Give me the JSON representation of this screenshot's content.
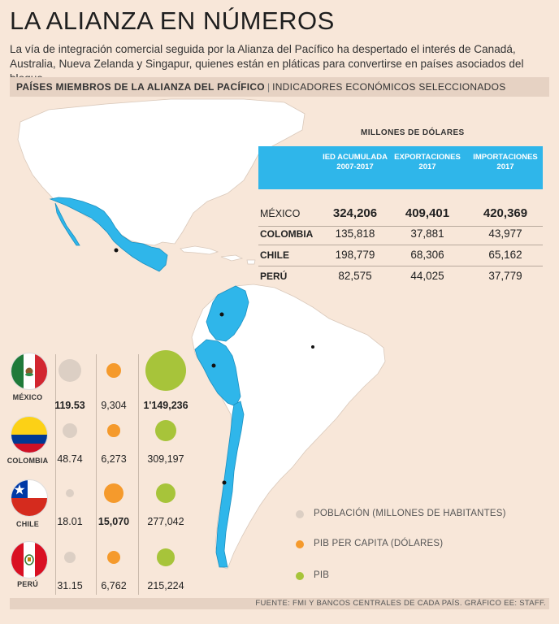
{
  "header": {
    "title": "LA ALIANZA EN NÚMEROS",
    "subtitle": "La vía de integración comercial seguida por la Alianza del Pacífico ha despertado el interés de Canadá, Australia, Nueva Zelanda y Singapur, quienes están en pláticas para convertirse en países asociados del bloque.",
    "section_strong": "PAÍSES MIEMBROS DE LA ALIANZA DEL PACÍFICO",
    "section_sep": "|",
    "section_light": "INDICADORES ECONÓMICOS SELECCIONADOS"
  },
  "colors": {
    "background": "#f8e7d9",
    "band": "#e6d2c3",
    "member": "#2fb6ea",
    "land": "#ffffff",
    "poblacion": "#dccfc4",
    "pib_per_capita": "#f59a2c",
    "pib": "#a7c43a"
  },
  "table": {
    "title": "MILLONES DE DÓLARES",
    "headers": [
      "IED ACUMULADA 2007-2017",
      "EXPORTACIONES 2017",
      "IMPORTACIONES 2017"
    ],
    "rows": [
      {
        "country": "MÉXICO",
        "ied": "324,206",
        "exp": "409,401",
        "imp": "420,369"
      },
      {
        "country": "COLOMBIA",
        "ied": "135,818",
        "exp": "37,881",
        "imp": "43,977"
      },
      {
        "country": "CHILE",
        "ied": "198,779",
        "exp": "68,306",
        "imp": "65,162"
      },
      {
        "country": "PERÚ",
        "ied": "82,575",
        "exp": "44,025",
        "imp": "37,779"
      }
    ]
  },
  "chart_data": {
    "type": "table",
    "title": "MILLONES DE DÓLARES",
    "columns": [
      "IED ACUMULADA 2007-2017",
      "EXPORTACIONES 2017",
      "IMPORTACIONES 2017"
    ],
    "categories": [
      "MÉXICO",
      "COLOMBIA",
      "CHILE",
      "PERÚ"
    ],
    "series": [
      {
        "name": "POBLACIÓN (MILLONES DE HABITANTES)",
        "values": [
          119.53,
          48.74,
          18.01,
          31.15
        ],
        "labels": [
          "119.53",
          "48.74",
          "18.01",
          "31.15"
        ]
      },
      {
        "name": "PIB PER CAPITA (DÓLARES)",
        "values": [
          9304,
          6273,
          15070,
          6762
        ],
        "labels": [
          "9,304",
          "6,273",
          "15,070",
          "6,762"
        ]
      },
      {
        "name": "PIB",
        "values": [
          1149236,
          309197,
          277042,
          215224
        ],
        "labels": [
          "1'149,236",
          "309,197",
          "277,042",
          "215,224"
        ]
      }
    ],
    "bold_highlights": {
      "POBLACIÓN (MILLONES DE HABITANTES)": "MÉXICO",
      "PIB PER CAPITA (DÓLARES)": "CHILE",
      "PIB": "MÉXICO"
    },
    "legend_placement": "bottom-right"
  },
  "countries": [
    {
      "name": "MÉXICO",
      "flag": "mexico-flag-icon"
    },
    {
      "name": "COLOMBIA",
      "flag": "colombia-flag-icon"
    },
    {
      "name": "CHILE",
      "flag": "chile-flag-icon"
    },
    {
      "name": "PERÚ",
      "flag": "peru-flag-icon"
    }
  ],
  "legend": [
    {
      "label": "POBLACIÓN (MILLONES DE HABITANTES)"
    },
    {
      "label": "PIB PER CAPITA (DÓLARES)"
    },
    {
      "label": "PIB"
    }
  ],
  "footer": "FUENTE: FMI Y BANCOS CENTRALES DE CADA PAÍS. GRÁFICO EE: STAFF."
}
